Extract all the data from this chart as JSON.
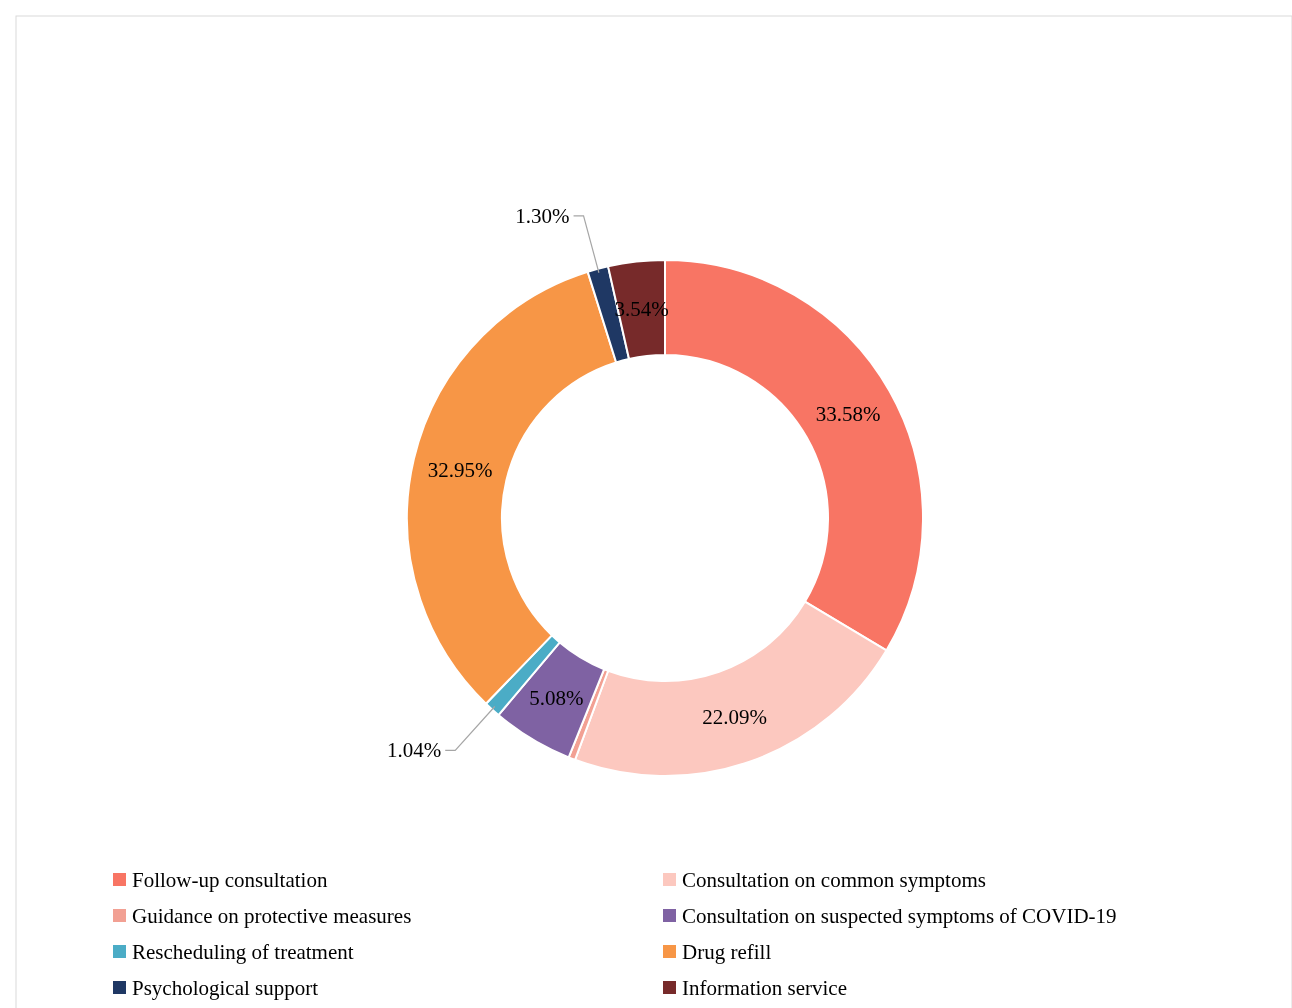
{
  "chart_data": {
    "type": "donut",
    "categories": [
      "Follow-up consultation",
      "Consultation on common symptoms",
      "Guidance on protective measures",
      "Consultation on suspected symptoms of COVID-19",
      "Rescheduling of treatment",
      "Drug refill",
      "Psychological support",
      "Information service"
    ],
    "values": [
      33.58,
      22.09,
      0.42,
      5.08,
      1.04,
      32.95,
      1.3,
      3.54
    ],
    "value_labels": [
      "33.58%",
      "22.09%",
      null,
      "5.08%",
      "1.04%",
      "32.95%",
      "1.30%",
      "3.54%"
    ],
    "colors": [
      "#f87564",
      "#fcc8bf",
      "#f2a093",
      "#7f62a3",
      "#4bacc6",
      "#f79646",
      "#1f3864",
      "#772a2a"
    ],
    "legend": "bottom"
  }
}
